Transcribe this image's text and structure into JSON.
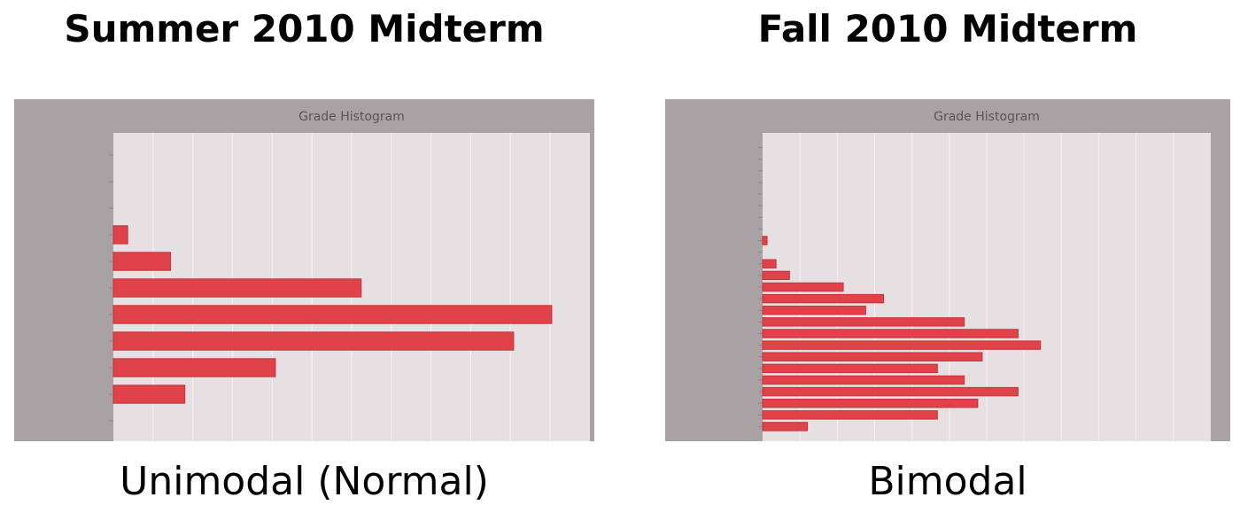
{
  "panels": [
    {
      "heading": "Summer 2010 Midterm",
      "caption": "Unimodal (Normal)"
    },
    {
      "heading": "Fall 2010 Midterm",
      "caption": "Bimodal"
    }
  ],
  "chart_data": [
    {
      "type": "bar",
      "orientation": "horizontal",
      "title": "Grade Histogram",
      "values": [
        0,
        0,
        0,
        3,
        12,
        52,
        92,
        84,
        34,
        15,
        0
      ],
      "xlim": [
        0,
        100
      ],
      "grid": true,
      "bar_color": "#e0424a"
    },
    {
      "type": "bar",
      "orientation": "horizontal",
      "title": "Grade Histogram",
      "values": [
        0,
        0,
        0,
        0,
        0,
        0,
        0,
        0,
        1,
        0,
        3,
        6,
        18,
        27,
        23,
        45,
        57,
        62,
        49,
        39,
        45,
        57,
        48,
        39,
        10
      ],
      "xlim": [
        0,
        100
      ],
      "grid": true,
      "bar_color": "#e0424a"
    }
  ],
  "colors": {
    "chart_bg": "#a9a2a4",
    "plot_bg": "#e6e0e2",
    "bar": "#e0424a",
    "bar_edge": "#c8333b",
    "grid": "#f2eef0",
    "title_text": "#5a5658"
  }
}
